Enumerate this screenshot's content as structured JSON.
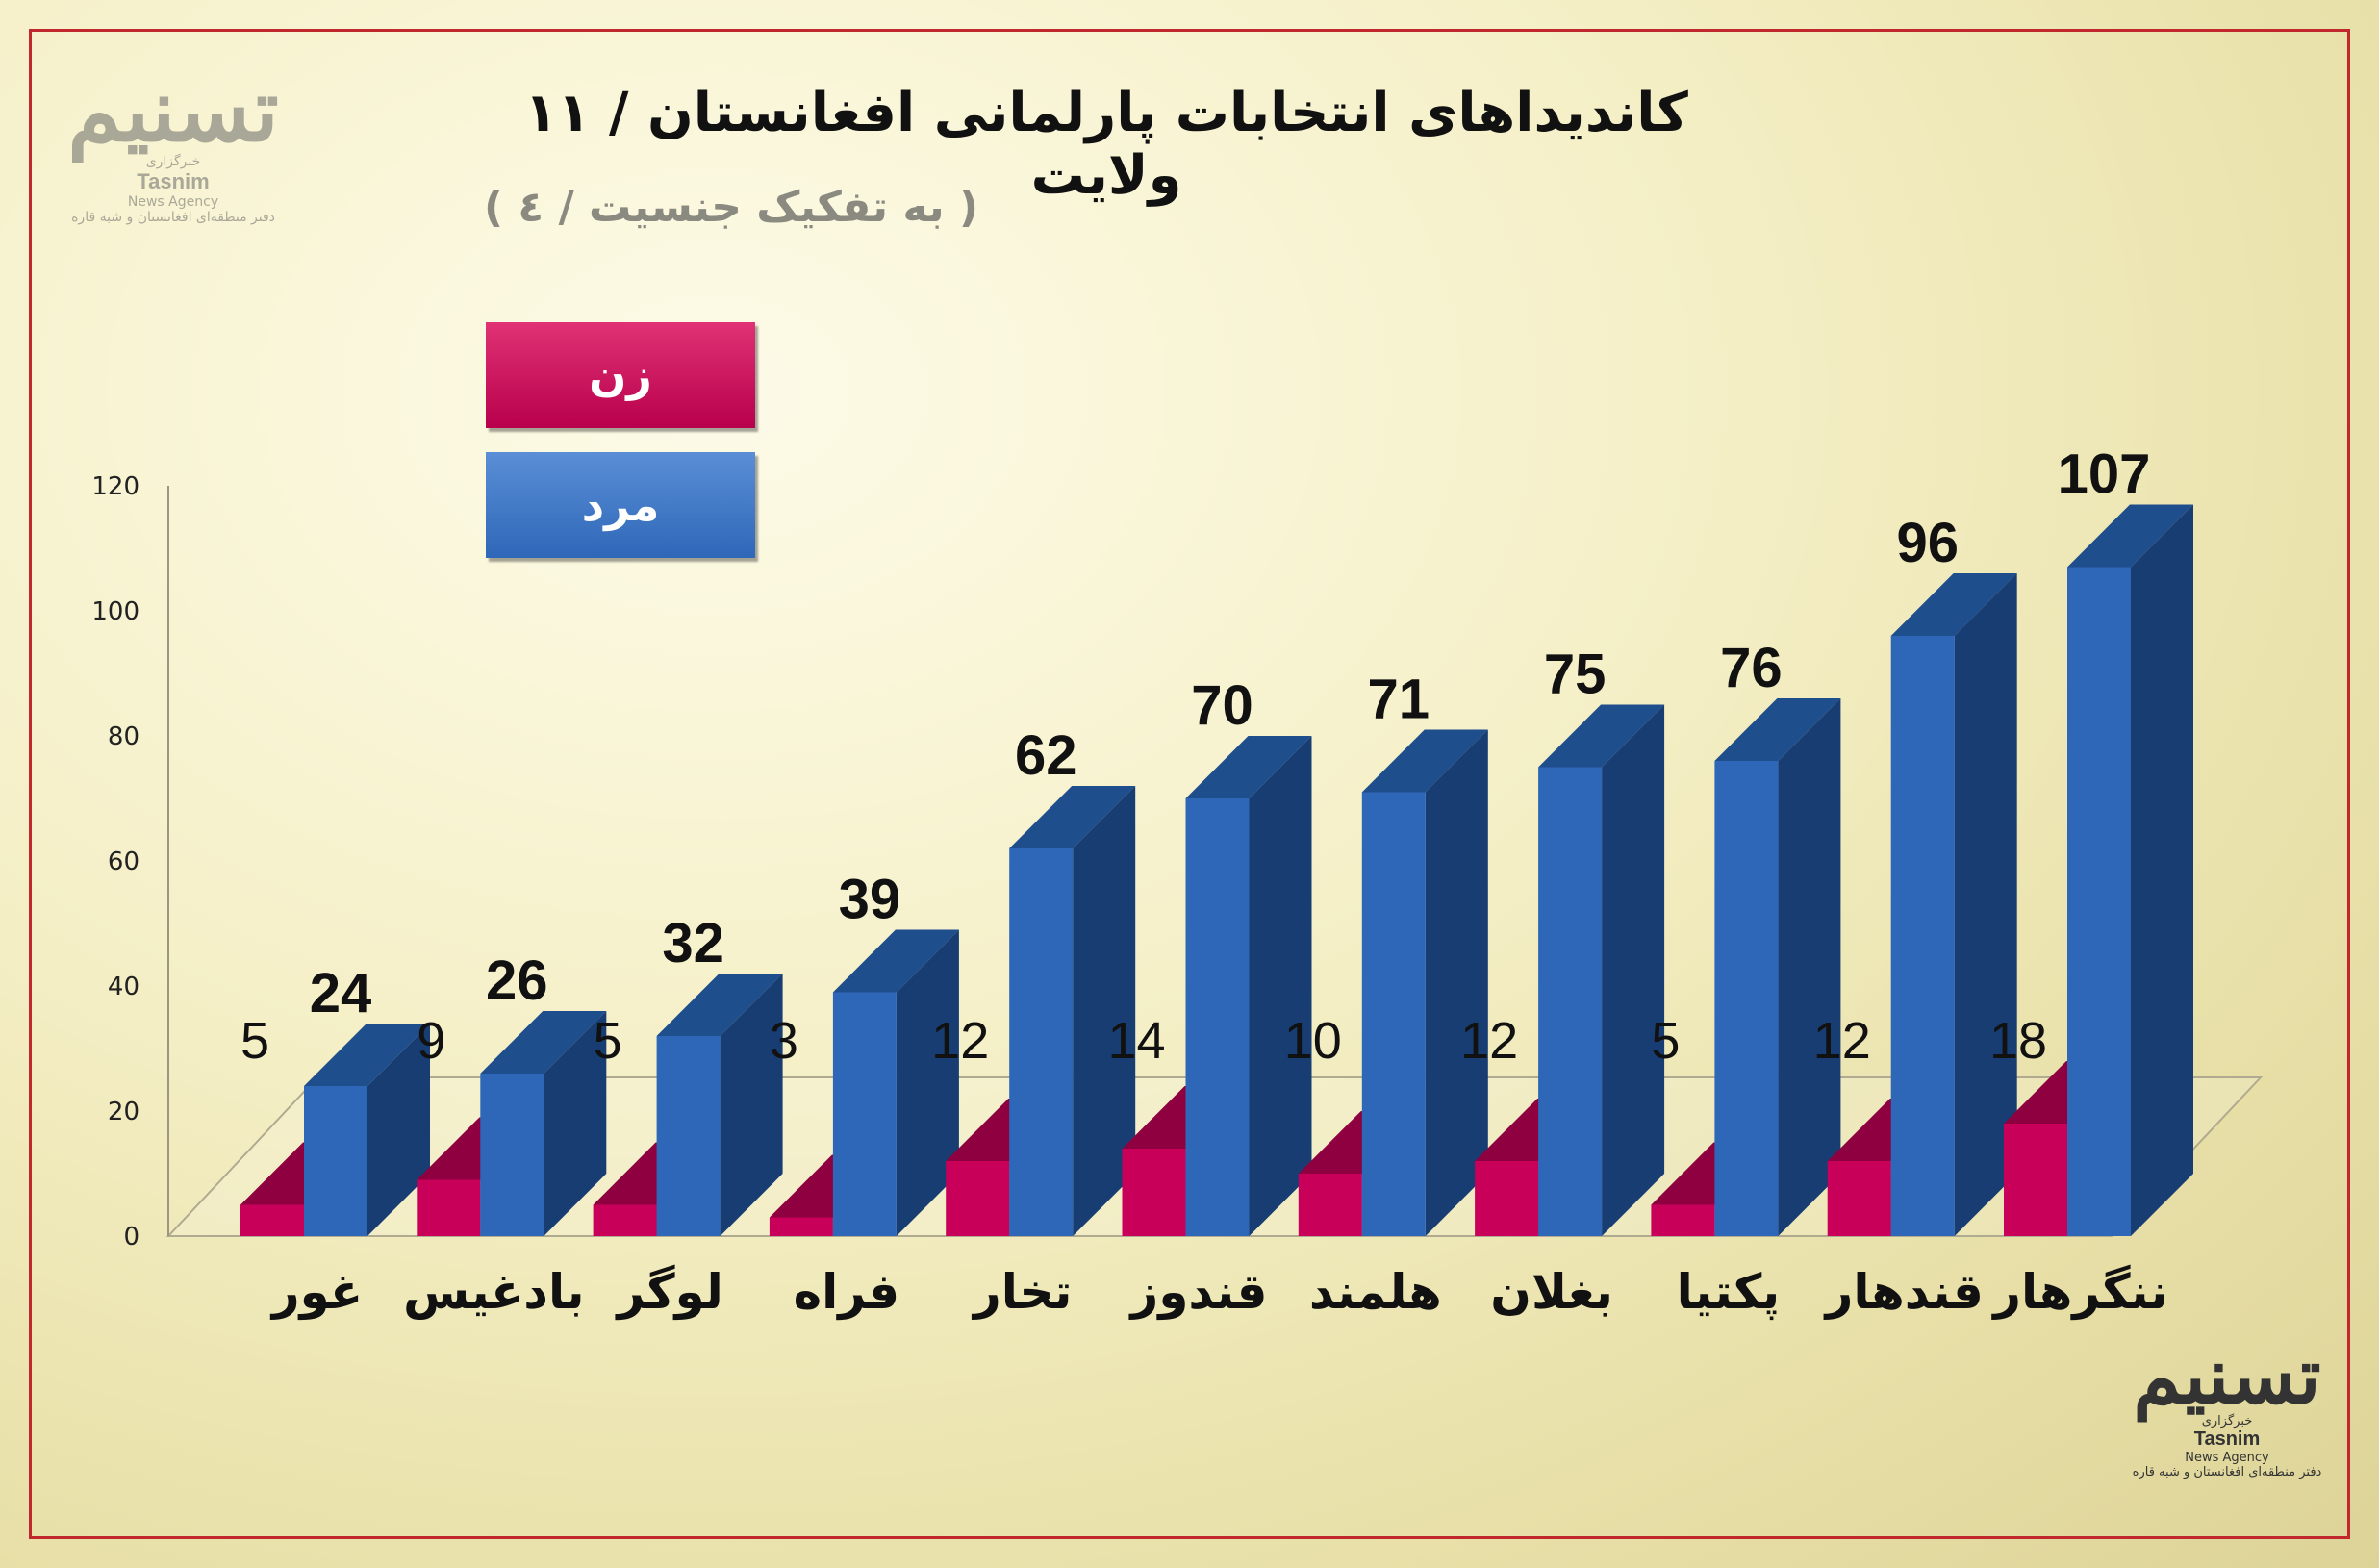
{
  "chart_data": {
    "type": "bar",
    "title": "کاندیداهای انتخابات پارلمانی افغانستان / ۱۱ ولایت",
    "subtitle": "( به تفکیک جنسیت / ٤ )",
    "categories": [
      "غور",
      "بادغیس",
      "لوگر",
      "فراه",
      "تخار",
      "قندوز",
      "هلمند",
      "بغلان",
      "پکتیا",
      "قندهار",
      "ننگرهار"
    ],
    "series": [
      {
        "name": "زن",
        "color": "#c8005a",
        "values": [
          5,
          9,
          5,
          3,
          12,
          14,
          10,
          12,
          5,
          12,
          18
        ]
      },
      {
        "name": "مرد",
        "color": "#2f67b8",
        "values": [
          24,
          26,
          32,
          39,
          62,
          70,
          71,
          75,
          76,
          96,
          107
        ]
      }
    ],
    "y_ticks": [
      "0",
      "20",
      "40",
      "60",
      "80",
      "100",
      "120"
    ],
    "ylim": [
      0,
      120
    ],
    "legend_position": "top-left",
    "three_d": true
  },
  "legend": {
    "female": "زن",
    "male": "مرد"
  },
  "logo": {
    "mark": "تسنیم",
    "fa": "خبرگزاری",
    "en": "Tasnim",
    "en2": "News Agency",
    "tag": "دفتر منطقه‌ای افغانستان و شبه قاره"
  }
}
